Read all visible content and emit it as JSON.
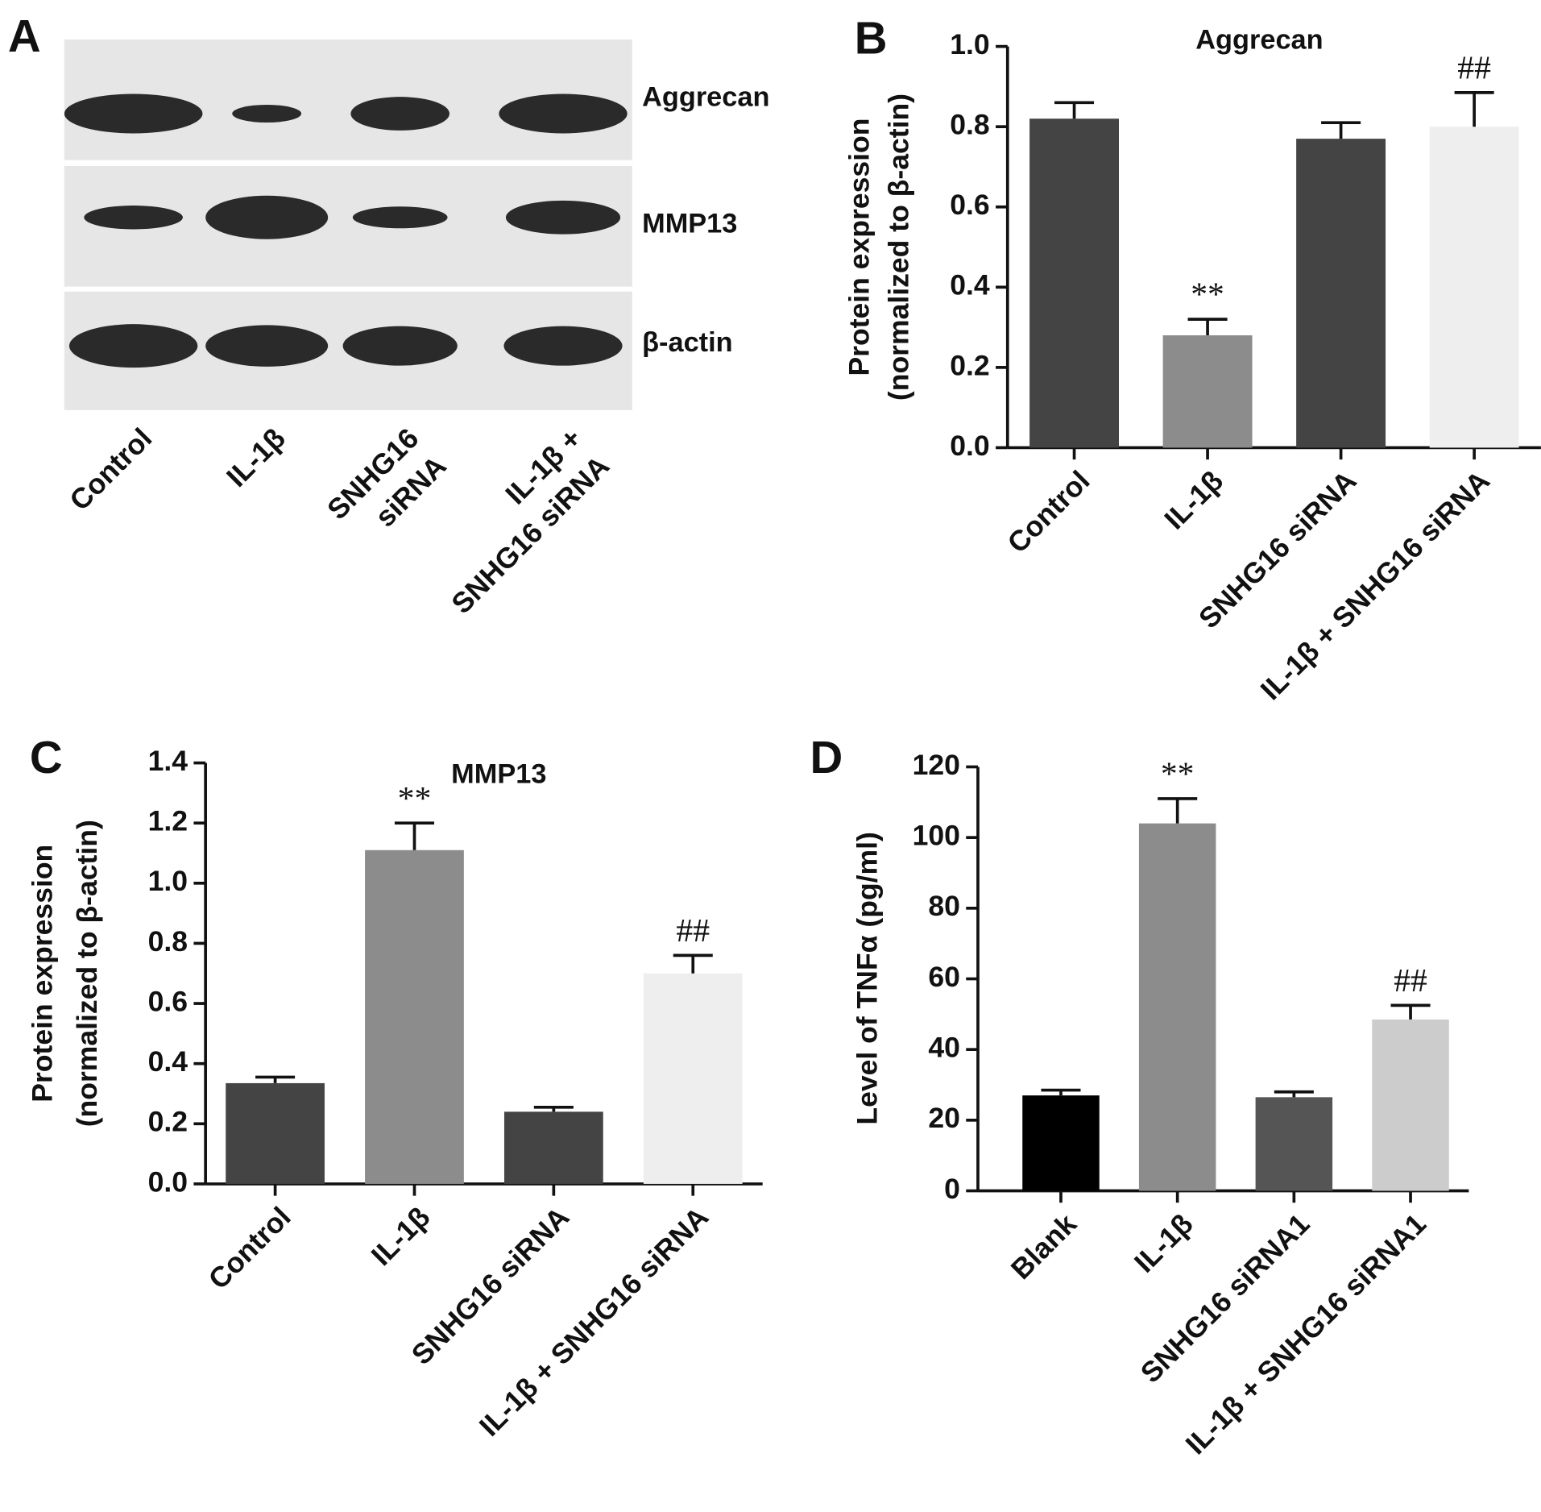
{
  "blot": {
    "panel": "A",
    "bands": [
      "Aggrecan",
      "MMP13",
      "β-actin"
    ],
    "lanes": [
      [
        "Control"
      ],
      [
        "IL-1β"
      ],
      [
        "SNHG16",
        "siRNA"
      ],
      [
        "IL-1β +",
        "SNHG16 siRNA"
      ]
    ]
  },
  "chart_data": [
    {
      "type": "bar",
      "panel": "B",
      "title": "Aggrecan",
      "ylabel": [
        "Protein expression",
        "(normalized to β-actin)"
      ],
      "categories": [
        "Control",
        "IL-1β",
        "SNHG16 siRNA",
        "IL-1β + SNHG16 siRNA"
      ],
      "values": [
        0.82,
        0.28,
        0.77,
        0.8
      ],
      "errors": [
        0.04,
        0.04,
        0.04,
        0.085
      ],
      "colors": [
        "#444444",
        "#8c8c8c",
        "#444444",
        "#eeeeee"
      ],
      "significance": [
        null,
        "**",
        null,
        "##"
      ],
      "ylim": [
        0,
        1
      ],
      "yticks": [
        {
          "value": 0,
          "label": "0.0"
        },
        0.2,
        0.4,
        0.6,
        0.8,
        {
          "value": 1,
          "label": "1.0"
        }
      ]
    },
    {
      "type": "bar",
      "panel": "C",
      "title": "MMP13",
      "ylabel": [
        "Protein expression",
        "(normalized to β-actin)"
      ],
      "categories": [
        "Control",
        "IL-1β",
        "SNHG16 siRNA",
        "IL-1β + SNHG16 siRNA"
      ],
      "values": [
        0.335,
        1.11,
        0.24,
        0.7
      ],
      "errors": [
        0.02,
        0.09,
        0.015,
        0.06
      ],
      "colors": [
        "#444444",
        "#8c8c8c",
        "#444444",
        "#eeeeee"
      ],
      "significance": [
        null,
        "**",
        null,
        "##"
      ],
      "ylim": [
        0,
        1.4
      ],
      "yticks": [
        {
          "value": 0,
          "label": "0.0"
        },
        0.2,
        0.4,
        0.6,
        0.8,
        {
          "value": 1,
          "label": "1.0"
        },
        1.2,
        1.4
      ]
    },
    {
      "type": "bar",
      "panel": "D",
      "ylabel": "Level of TNFα (pg/ml)",
      "categories": [
        "Blank",
        "IL-1β",
        "SNHG16 siRNA1",
        "IL-1β + SNHG16 siRNA1"
      ],
      "values": [
        27,
        104,
        26.5,
        48.5
      ],
      "errors": [
        1.5,
        7,
        1.5,
        4
      ],
      "colors": [
        "#000000",
        "#8c8c8c",
        "#555555",
        "#cccccc"
      ],
      "significance": [
        null,
        "**",
        null,
        "##"
      ],
      "ylim": [
        0,
        120
      ],
      "yticks": [
        0,
        20,
        40,
        60,
        80,
        100,
        120
      ]
    }
  ]
}
